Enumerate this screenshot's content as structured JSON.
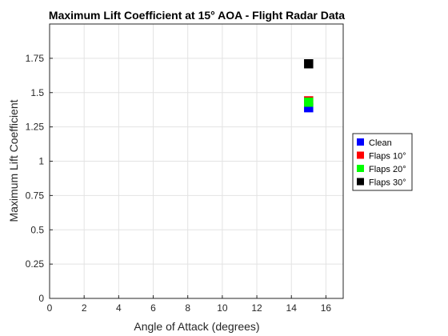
{
  "chart_data": {
    "type": "scatter",
    "title": "Maximum Lift Coefficient at 15° AOA - Flight Radar Data",
    "xlabel": "Angle of Attack (degrees)",
    "ylabel": "Maximum Lift Coefficient",
    "xlim": [
      0,
      17
    ],
    "ylim": [
      0,
      2
    ],
    "xticks": [
      0,
      2,
      4,
      6,
      8,
      10,
      12,
      14,
      16
    ],
    "yticks": [
      0,
      0.25,
      0.5,
      0.75,
      1,
      1.25,
      1.5,
      1.75
    ],
    "xtick_labels": [
      "0",
      "2",
      "4",
      "6",
      "8",
      "10",
      "12",
      "14",
      "16"
    ],
    "ytick_labels": [
      "0",
      "0.25",
      "0.5",
      "0.75",
      "1",
      "1.25",
      "1.5",
      "1.75"
    ],
    "grid": true,
    "legend_position": "right",
    "marker": "square",
    "series": [
      {
        "name": "Clean",
        "color": "#0000ff",
        "x": [
          15
        ],
        "y": [
          1.39
        ]
      },
      {
        "name": "Flaps 10°",
        "color": "#ff0000",
        "x": [
          15
        ],
        "y": [
          1.44
        ]
      },
      {
        "name": "Flaps 20°",
        "color": "#00ff00",
        "x": [
          15
        ],
        "y": [
          1.43
        ]
      },
      {
        "name": "Flaps 30°",
        "color": "#000000",
        "x": [
          15
        ],
        "y": [
          1.71
        ]
      }
    ]
  }
}
